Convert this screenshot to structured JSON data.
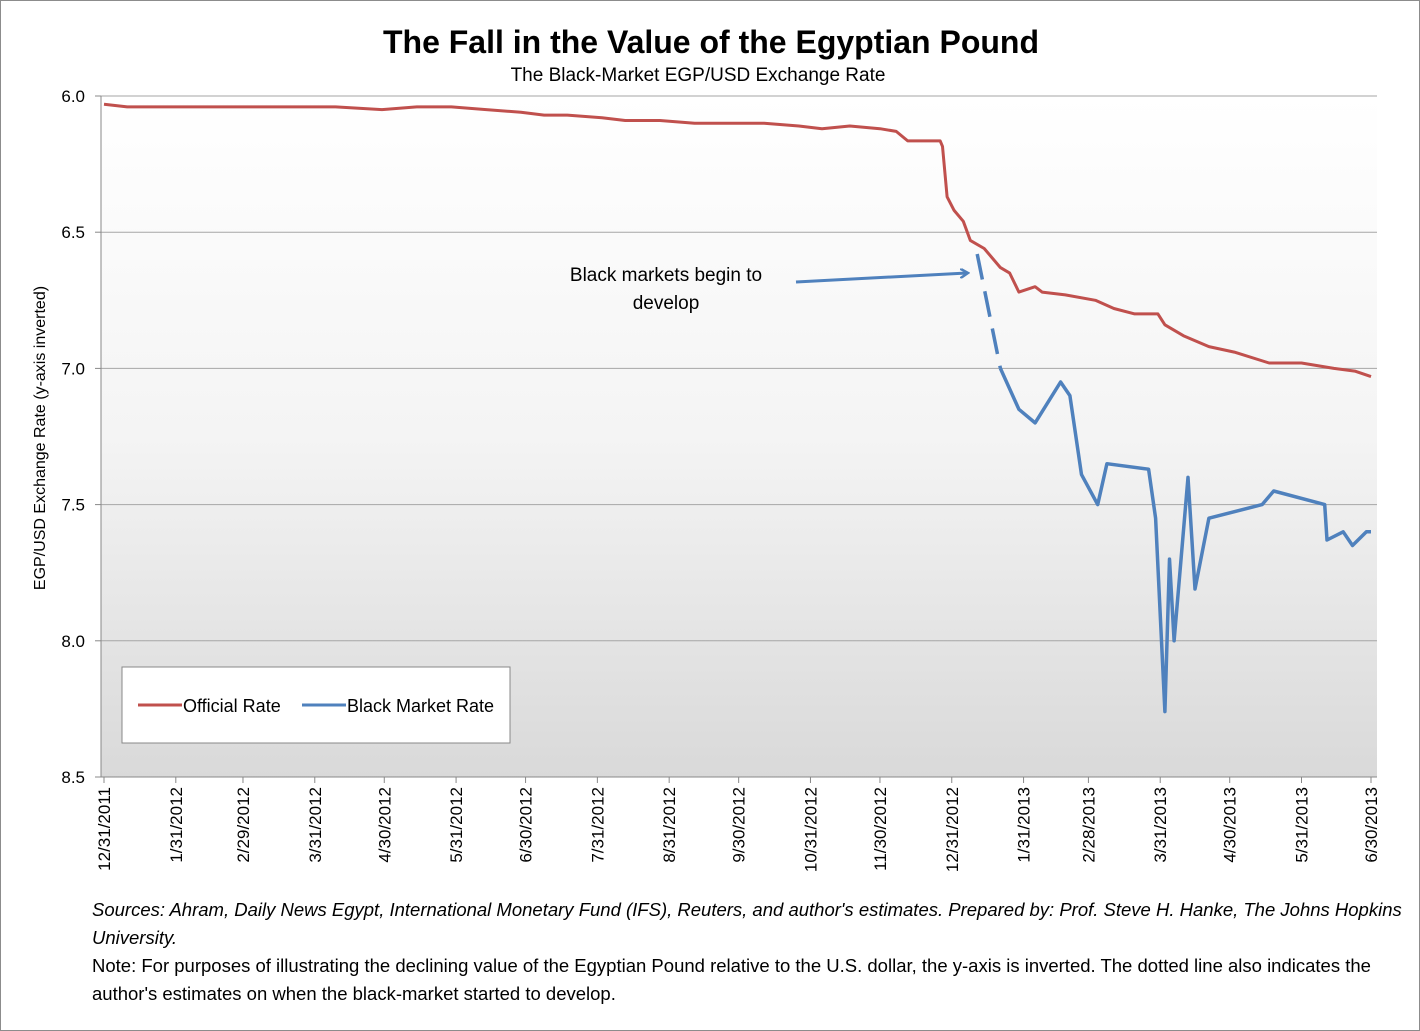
{
  "chart_data": {
    "type": "line",
    "title": "The Fall in the Value of the Egyptian Pound",
    "subtitle": "The Black-Market EGP/USD Exchange Rate",
    "ylabel": "EGP/USD Exchange Rate (y-axis inverted)",
    "xlabel": "",
    "ylim": [
      6.0,
      8.5
    ],
    "y_inverted": true,
    "y_ticks": [
      "6.0",
      "6.5",
      "7.0",
      "7.5",
      "8.0",
      "8.5"
    ],
    "y_tick_values": [
      6.0,
      6.5,
      7.0,
      7.5,
      8.0,
      8.5
    ],
    "x_unit": "days since 12/31/2011",
    "x_range": [
      0,
      547
    ],
    "x_ticks": [
      "12/31/2011",
      "1/31/2012",
      "2/29/2012",
      "3/31/2012",
      "4/30/2012",
      "5/31/2012",
      "6/30/2012",
      "7/31/2012",
      "8/31/2012",
      "9/30/2012",
      "10/31/2012",
      "11/30/2012",
      "12/31/2012",
      "1/31/2013",
      "2/28/2013",
      "3/31/2013",
      "4/30/2013",
      "5/31/2013",
      "6/30/2013"
    ],
    "x_tick_values": [
      0,
      31,
      60,
      91,
      121,
      152,
      182,
      213,
      244,
      274,
      305,
      335,
      366,
      397,
      425,
      456,
      486,
      517,
      547
    ],
    "grid": true,
    "legend_position": "bottom-left",
    "annotation": [
      "Black markets begin to",
      "develop"
    ],
    "series": [
      {
        "name": "Official Rate",
        "color": "#c0504d",
        "x": [
          0,
          10,
          20,
          40,
          60,
          80,
          100,
          120,
          135,
          150,
          165,
          180,
          190,
          200,
          215,
          225,
          240,
          255,
          270,
          285,
          300,
          310,
          322,
          335,
          342,
          347,
          361,
          362,
          364,
          367,
          371,
          374,
          380,
          387,
          391,
          395,
          402,
          405,
          415,
          428,
          436,
          445,
          455,
          458,
          466,
          477,
          488,
          503,
          517,
          531,
          540,
          547
        ],
        "values": [
          6.03,
          6.04,
          6.04,
          6.04,
          6.04,
          6.04,
          6.04,
          6.05,
          6.04,
          6.04,
          6.05,
          6.06,
          6.07,
          6.07,
          6.08,
          6.09,
          6.09,
          6.1,
          6.1,
          6.1,
          6.11,
          6.12,
          6.11,
          6.12,
          6.13,
          6.165,
          6.165,
          6.185,
          6.37,
          6.42,
          6.46,
          6.53,
          6.56,
          6.63,
          6.65,
          6.72,
          6.7,
          6.72,
          6.73,
          6.75,
          6.78,
          6.8,
          6.8,
          6.84,
          6.88,
          6.92,
          6.94,
          6.98,
          6.98,
          7.0,
          7.01,
          7.03
        ]
      },
      {
        "name": "Black Market Rate",
        "color": "#4f81bd",
        "estimated_x": [
          377,
          387
        ],
        "estimated_values": [
          6.58,
          7.0
        ],
        "x": [
          387,
          395,
          402,
          413,
          417,
          422,
          429,
          433,
          451,
          454,
          458,
          460,
          462,
          468,
          471,
          477,
          500,
          505,
          527,
          528,
          535,
          539,
          545,
          547
        ],
        "values": [
          7.0,
          7.15,
          7.2,
          7.05,
          7.1,
          7.39,
          7.5,
          7.35,
          7.37,
          7.55,
          8.26,
          7.7,
          8.0,
          7.4,
          7.81,
          7.55,
          7.5,
          7.45,
          7.5,
          7.63,
          7.6,
          7.65,
          7.6,
          7.6
        ]
      }
    ]
  },
  "footer": {
    "sources": "Sources: Ahram, Daily News Egypt, International Monetary Fund  (IFS), Reuters, and author's estimates. Prepared by: Prof. Steve H. Hanke, The Johns Hopkins University.",
    "note": "Note: For purposes of illustrating the declining value of the Egyptian Pound relative to the U.S. dollar, the y-axis is inverted. The dotted line also indicates the author's estimates on when the black-market started to develop."
  }
}
